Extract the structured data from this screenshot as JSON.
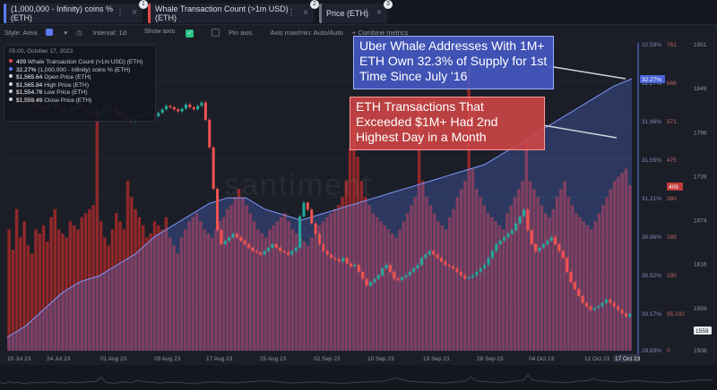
{
  "tabs": [
    {
      "label": "(1,000,000 - Infinity) coins % (ETH)",
      "color": "#5b7cf0",
      "badge": "1"
    },
    {
      "label": "Whale Transaction Count (>1m USD) (ETH)",
      "color": "#e14b4b",
      "badge": "2"
    },
    {
      "label": "Price (ETH)",
      "color": "#6b7280",
      "badge": "3"
    }
  ],
  "toolbar": {
    "style": "Style: Area",
    "interval": "Interval: 1d",
    "show_axis": "Show axis",
    "pin_axis": "Pin axis",
    "axis_minmax": "Axis max/min: Auto/Auto",
    "combine": "+ Combine metrics"
  },
  "legend": {
    "date": "05:00, October 17, 2023",
    "rows": [
      {
        "value": "409",
        "label": "Whale Transaction Count (>1m USD) (ETH)",
        "color": "#e14b4b"
      },
      {
        "value": "32.27%",
        "label": "(1,000,000 - Infinity) coins % (ETH)",
        "color": "#5b7cf0"
      },
      {
        "value": "$1,565.64",
        "label": "Open Price (ETH)",
        "color": "#cfd3da"
      },
      {
        "value": "$1,565.84",
        "label": "High Price (ETH)",
        "color": "#cfd3da"
      },
      {
        "value": "$1,554.76",
        "label": "Low Price (ETH)",
        "color": "#cfd3da"
      },
      {
        "value": "$1,559.49",
        "label": "Close Price (ETH)",
        "color": "#cfd3da"
      }
    ]
  },
  "annotations": {
    "note1": "Uber Whale Addresses With 1M+ ETH Own 32.3% of Supply for 1st Time Since July '16",
    "note2": "ETH Transactions That Exceeded $1M+ Had 2nd Highest Day in a Month"
  },
  "watermark": "santiment",
  "chart_data": {
    "type": "bar",
    "x_tick_labels": [
      "10 Jul 23",
      "24 Jul 23",
      "01 Aug 23",
      "09 Aug 23",
      "17 Aug 23",
      "25 Aug 23",
      "02 Sep 23",
      "10 Sep 23",
      "19 Sep 23",
      "28 Sep 23",
      "04 Oct 23",
      "12 Oct 23",
      "17 Oct 23"
    ],
    "axis_pct_ticks": [
      "32.59%",
      "32.27%",
      "31.96%",
      "31.55%",
      "31.21%",
      "30.86%",
      "30.52%",
      "30.17%",
      "29.83%"
    ],
    "axis_count_ticks": [
      "761",
      "666",
      "571",
      "475",
      "380",
      "285",
      "190",
      "95.192",
      "0"
    ],
    "axis_price_ticks": [
      "1951",
      "1849",
      "1796",
      "1739",
      "1674",
      "1616",
      "1559",
      "1506"
    ],
    "current_values": {
      "coins_pct": "32.27%",
      "whale_tx": "409",
      "price": "1559"
    },
    "colors": {
      "bars": "#a52a2a",
      "area": "#5b7cf0",
      "candle_up": "#26a69a",
      "candle_down": "#ef5350"
    },
    "series": [
      {
        "name": "Whale Transaction Count (>1m USD) (ETH)",
        "axis": "count",
        "values": [
          300,
          250,
          350,
          280,
          320,
          260,
          240,
          300,
          290,
          310,
          270,
          330,
          350,
          300,
          290,
          280,
          320,
          310,
          300,
          330,
          340,
          350,
          360,
          600,
          320,
          280,
          260,
          300,
          340,
          320,
          300,
          420,
          380,
          350,
          330,
          310,
          280,
          290,
          320,
          310,
          300,
          330,
          280,
          260,
          240,
          280,
          300,
          320,
          330,
          340,
          320,
          300,
          290,
          280,
          300,
          320,
          330,
          350,
          360,
          380,
          400,
          380,
          360,
          340,
          320,
          300,
          290,
          280,
          300,
          310,
          320,
          330,
          340,
          320,
          300,
          290,
          280,
          270,
          260,
          280,
          300,
          310,
          320,
          330,
          340,
          350,
          360,
          380,
          420,
          500,
          560,
          480,
          420,
          380,
          360,
          340,
          330,
          320,
          310,
          300,
          290,
          280,
          300,
          320,
          340,
          360,
          380,
          620,
          420,
          380,
          360,
          340,
          320,
          310,
          300,
          330,
          350,
          380,
          400,
          420,
          700,
          450,
          400,
          380,
          360,
          340,
          330,
          320,
          310,
          300,
          340,
          360,
          380,
          400,
          420,
          520,
          420,
          400,
          380,
          360,
          340,
          330,
          350,
          380,
          400,
          420,
          380,
          360,
          340,
          330,
          320,
          310,
          300,
          320,
          340,
          360,
          380,
          400,
          420,
          430,
          440,
          450,
          409
        ]
      },
      {
        "name": "(1,000,000 - Infinity) coins % (ETH)",
        "axis": "pct",
        "values": [
          29.95,
          30.05,
          30.2,
          30.35,
          30.45,
          30.5,
          30.6,
          30.7,
          30.85,
          30.95,
          31.05,
          31.15,
          31.2,
          31.2,
          31.1,
          31.05,
          31.0,
          31.05,
          31.1,
          31.15,
          31.2,
          31.25,
          31.3,
          31.35,
          31.4,
          31.45,
          31.5,
          31.6,
          31.7,
          31.8,
          31.9,
          32.0,
          32.1,
          32.2,
          32.27
        ]
      },
      {
        "name": "Price (ETH)",
        "axis": "price",
        "values": [
          1880,
          1878,
          1875,
          1870,
          1872,
          1868,
          1865,
          1860,
          1858,
          1855,
          1860,
          1862,
          1858,
          1855,
          1850,
          1852,
          1856,
          1860,
          1858,
          1855,
          1850,
          1848,
          1845,
          1850,
          1855,
          1860,
          1858,
          1852,
          1848,
          1845,
          1840,
          1838,
          1842,
          1845,
          1848,
          1850,
          1848,
          1845,
          1850,
          1855,
          1860,
          1858,
          1855,
          1852,
          1856,
          1862,
          1858,
          1855,
          1860,
          1865,
          1840,
          1800,
          1740,
          1680,
          1660,
          1665,
          1670,
          1675,
          1670,
          1665,
          1660,
          1655,
          1650,
          1648,
          1645,
          1650,
          1655,
          1660,
          1655,
          1650,
          1648,
          1645,
          1650,
          1655,
          1700,
          1720,
          1710,
          1690,
          1675,
          1660,
          1650,
          1645,
          1640,
          1638,
          1635,
          1640,
          1632,
          1628,
          1630,
          1620,
          1610,
          1600,
          1605,
          1610,
          1615,
          1625,
          1630,
          1620,
          1610,
          1608,
          1612,
          1615,
          1620,
          1625,
          1630,
          1640,
          1645,
          1650,
          1645,
          1640,
          1635,
          1630,
          1628,
          1625,
          1620,
          1615,
          1610,
          1612,
          1615,
          1620,
          1625,
          1630,
          1640,
          1650,
          1660,
          1665,
          1670,
          1675,
          1680,
          1690,
          1700,
          1710,
          1680,
          1660,
          1650,
          1655,
          1660,
          1665,
          1670,
          1660,
          1650,
          1640,
          1620,
          1605,
          1595,
          1585,
          1575,
          1570,
          1565,
          1568,
          1570,
          1575,
          1580,
          1575,
          1570,
          1565,
          1560,
          1555,
          1559
        ]
      }
    ],
    "xlabel": "",
    "ylabel": ""
  }
}
